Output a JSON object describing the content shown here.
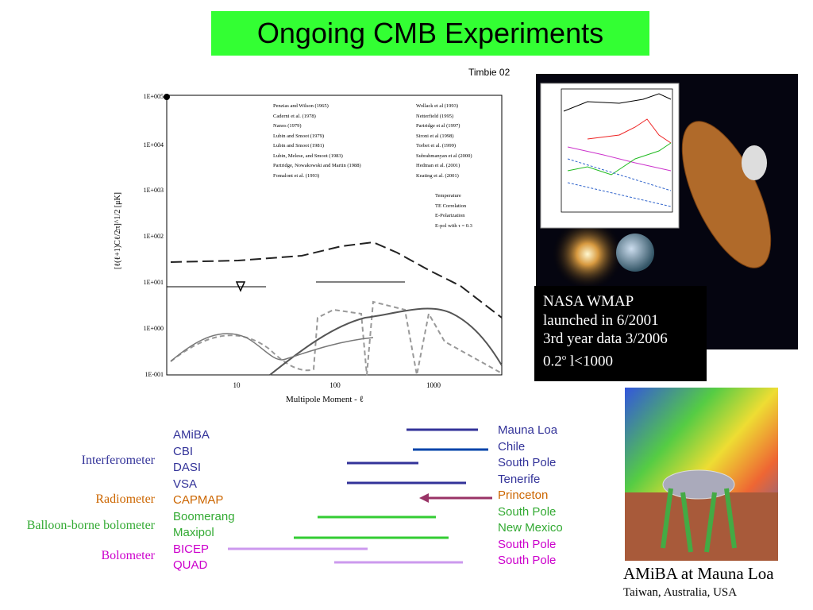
{
  "title": "Ongoing CMB Experiments",
  "credit": "Timbie 02",
  "plot": {
    "y_axis_label": "[ℓ(ℓ+1)Cℓ/2π]^1/2 [μK]",
    "x_axis_label": "Multipole Moment - ℓ",
    "yticks": [
      "1E+005",
      "1E+004",
      "1E+003",
      "1E+002",
      "1E+001",
      "1E+000",
      "1E-001"
    ],
    "xticks": [
      "10",
      "100",
      "1000"
    ],
    "legend_left": [
      "Penzias and Wilson (1965)",
      "Caderni et al. (1978)",
      "Nanos (1979)",
      "Lubin and Smoot (1979)",
      "Lubin and Smoot (1981)",
      "Lubin, Melese, and Smoot (1983)",
      "Partridge, Nowakowski and Martin (1988)",
      "Fomalont et al. (1993)"
    ],
    "legend_right": [
      "Wollack et al (1993)",
      "Netterfield (1995)",
      "Partridge et al (1997)",
      "Sironi et al (1998)",
      "Torbet et al. (1999)",
      "Subrahmanyan et al (2000)",
      "Hedman et al. (2001)",
      "Keating et al. (2001)"
    ],
    "legend_lines": [
      "Temperature",
      "TE Correlation",
      "E-Polarization",
      "E-pol with τ = 0.3"
    ]
  },
  "wmap": {
    "lines": [
      "NASA WMAP",
      "launched in 6/2001",
      "3rd year data 3/2006"
    ],
    "res_value": "0.2",
    "res_sup": "o",
    "res_rest": " l<1000"
  },
  "amiba": {
    "caption": "AMiBA at Mauna Loa",
    "subcaption": "Taiwan, Australia, USA"
  },
  "groups": [
    {
      "name": "Interferometer",
      "color": "#333399",
      "experiments": [
        {
          "name": "AMiBA",
          "site": "Mauna Loa"
        },
        {
          "name": "CBI",
          "site": "Chile"
        },
        {
          "name": "DASI",
          "site": "South Pole"
        },
        {
          "name": "VSA",
          "site": "Tenerife"
        }
      ]
    },
    {
      "name": "Radiometer",
      "color": "#cc6600",
      "experiments": [
        {
          "name": "CAPMAP",
          "site": "Princeton"
        }
      ]
    },
    {
      "name": "Balloon-borne bolometer",
      "color": "#33aa33",
      "experiments": [
        {
          "name": "Boomerang",
          "site": "South Pole"
        },
        {
          "name": "Maxipol",
          "site": "New Mexico"
        }
      ]
    },
    {
      "name": "Bolometer",
      "color": "#cc00cc",
      "experiments": [
        {
          "name": "BICEP",
          "site": "South Pole"
        },
        {
          "name": "QUAD",
          "site": "South Pole"
        }
      ]
    }
  ]
}
